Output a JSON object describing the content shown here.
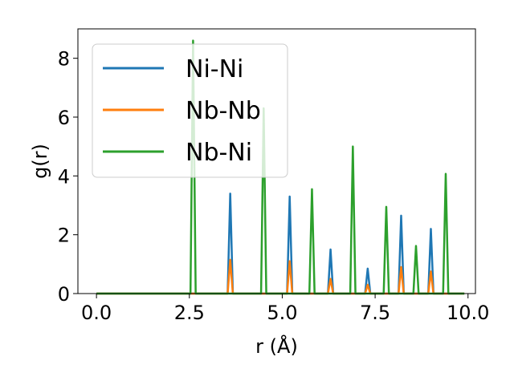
{
  "chart_data": {
    "type": "line",
    "xlabel": "r (Å)",
    "ylabel": "g(r)",
    "xlim": [
      -0.5,
      10.2
    ],
    "ylim": [
      0,
      9
    ],
    "xticks": [
      0.0,
      2.5,
      5.0,
      7.5,
      10.0
    ],
    "xtick_labels": [
      "0.0",
      "2.5",
      "5.0",
      "7.5",
      "10.0"
    ],
    "yticks": [
      0,
      2,
      4,
      6,
      8
    ],
    "ytick_labels": [
      "0",
      "2",
      "4",
      "6",
      "8"
    ],
    "grid": false,
    "legend_position": "top-left",
    "peak_half_width": 0.07,
    "series": [
      {
        "name": "Ni-Ni",
        "color": "#1f77b4",
        "peaks": [
          {
            "x": 3.6,
            "y": 3.4
          },
          {
            "x": 5.2,
            "y": 3.3
          },
          {
            "x": 6.3,
            "y": 1.5
          },
          {
            "x": 7.3,
            "y": 0.85
          },
          {
            "x": 8.2,
            "y": 2.65
          },
          {
            "x": 9.0,
            "y": 2.2
          }
        ]
      },
      {
        "name": "Nb-Nb",
        "color": "#ff7f0e",
        "peaks": [
          {
            "x": 3.6,
            "y": 1.15
          },
          {
            "x": 5.2,
            "y": 1.1
          },
          {
            "x": 6.3,
            "y": 0.5
          },
          {
            "x": 7.3,
            "y": 0.3
          },
          {
            "x": 8.2,
            "y": 0.9
          },
          {
            "x": 9.0,
            "y": 0.75
          }
        ]
      },
      {
        "name": "Nb-Ni",
        "color": "#2ca02c",
        "peaks": [
          {
            "x": 2.6,
            "y": 8.6
          },
          {
            "x": 4.5,
            "y": 6.3
          },
          {
            "x": 5.8,
            "y": 3.55
          },
          {
            "x": 6.9,
            "y": 5.0
          },
          {
            "x": 7.8,
            "y": 2.95
          },
          {
            "x": 8.6,
            "y": 1.62
          },
          {
            "x": 9.4,
            "y": 4.07
          }
        ]
      }
    ],
    "x_range": [
      0,
      9.9
    ]
  }
}
